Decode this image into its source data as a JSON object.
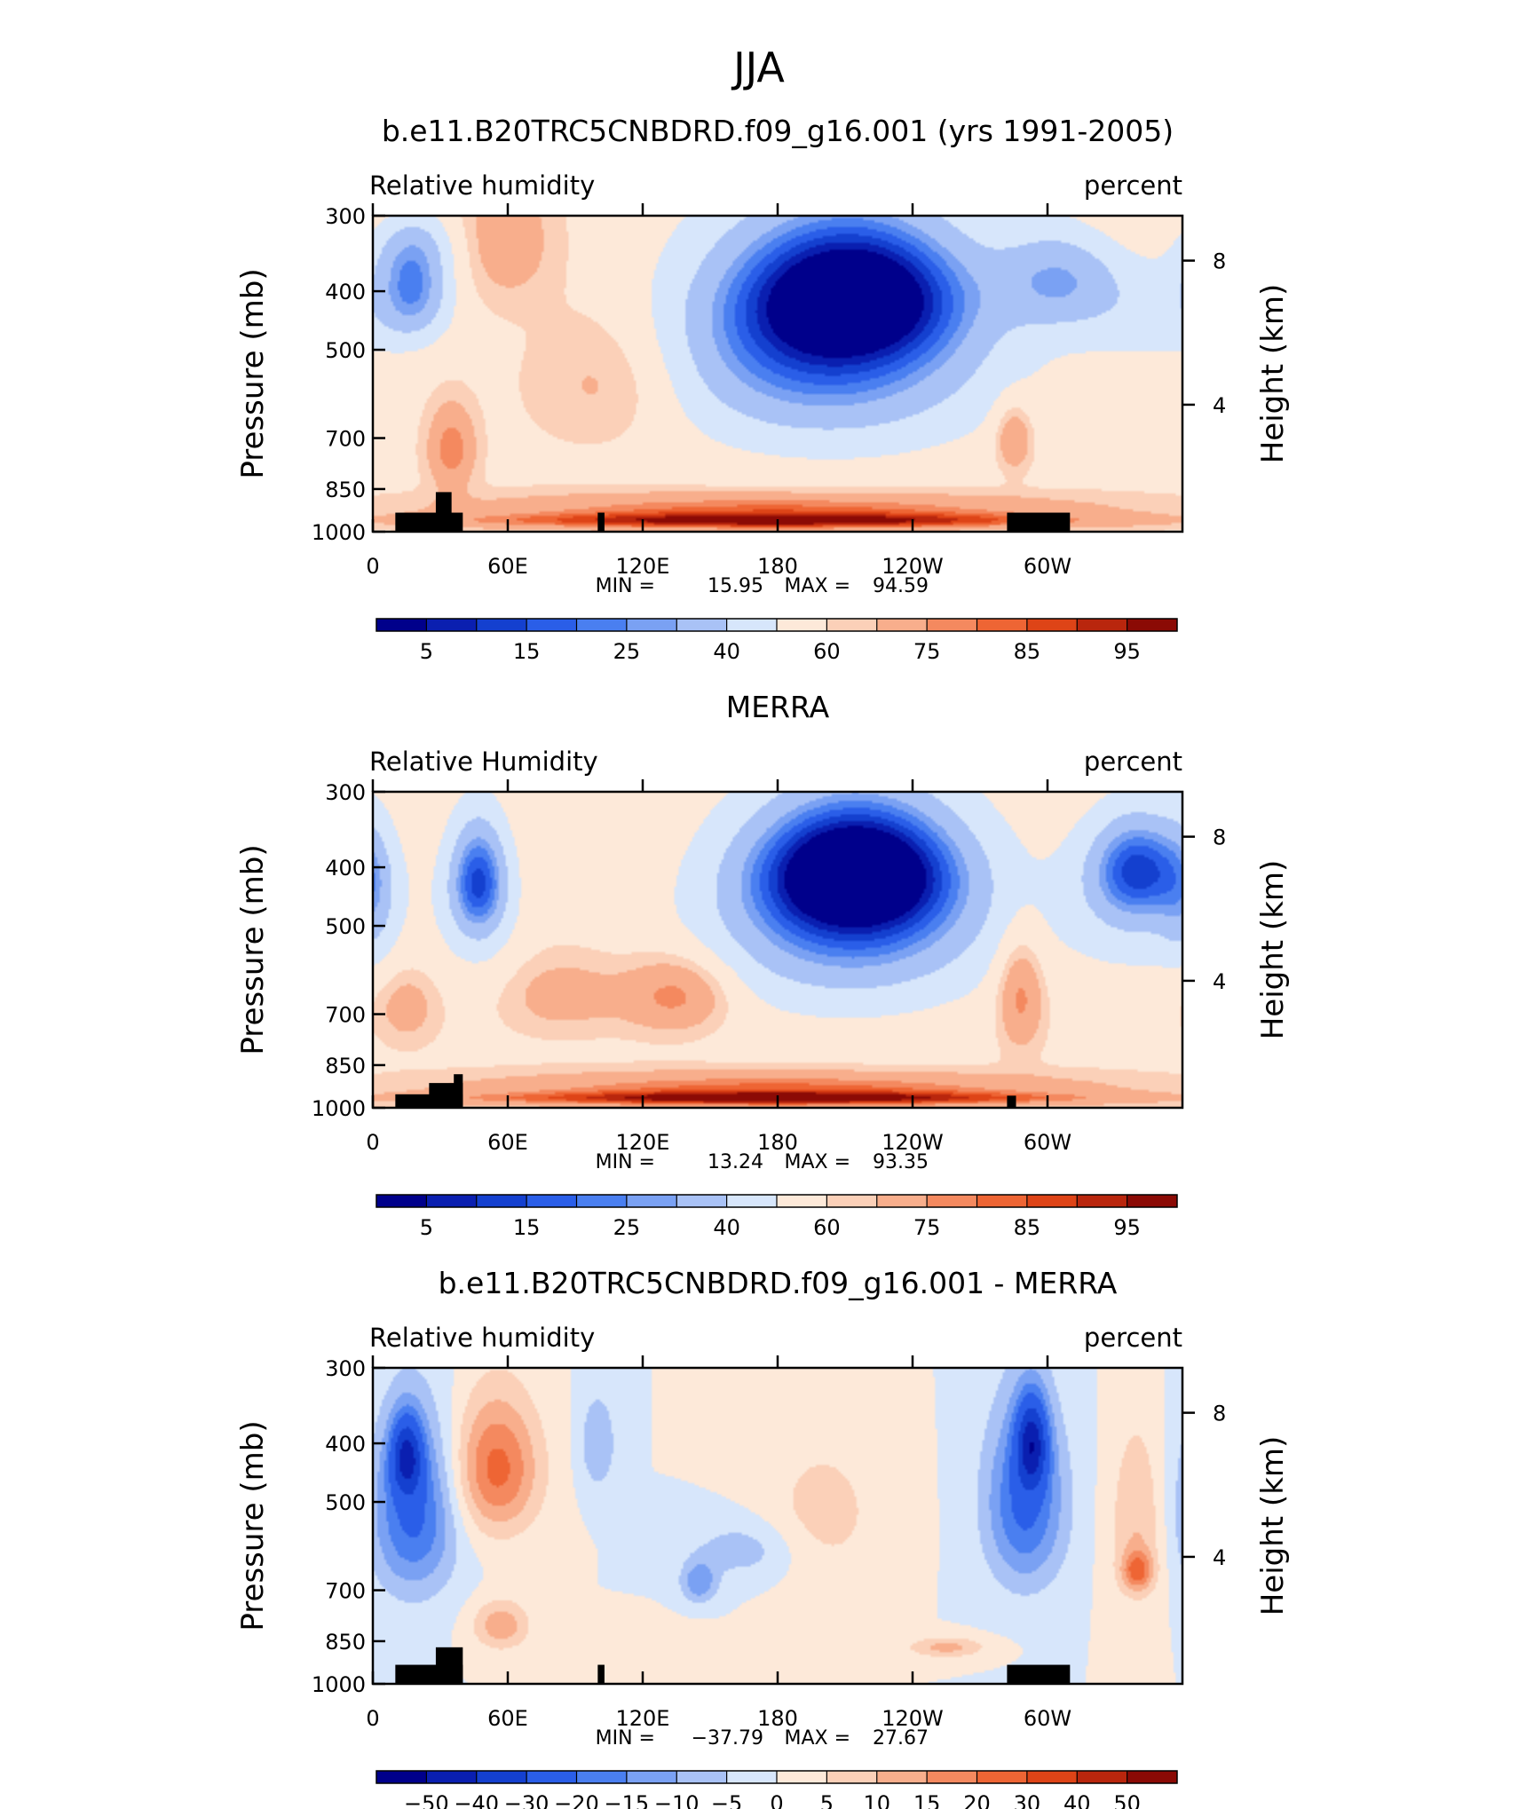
{
  "figure_title": "JJA",
  "chart_data": [
    {
      "type": "heatmap",
      "title": "b.e11.B20TRC5CNBDRD.f09_g16.001 (yrs 1991-2005)",
      "left_label": "Relative humidity",
      "right_label": "percent",
      "ylabel": "Pressure (mb)",
      "y2label": "Height (km)",
      "xlabel": "",
      "y_ticks": [
        "300",
        "400",
        "500",
        "700",
        "850",
        "1000"
      ],
      "y_tick_values": [
        300,
        400,
        500,
        700,
        850,
        1000
      ],
      "y2_ticks": [
        "8",
        "4"
      ],
      "y2_tick_values": [
        8,
        4
      ],
      "x_ticks": [
        "0",
        "60E",
        "120E",
        "180",
        "120W",
        "60W"
      ],
      "x_tick_values": [
        0,
        60,
        120,
        180,
        240,
        300
      ],
      "xlim": [
        0,
        360
      ],
      "ylim": [
        1000,
        300
      ],
      "stats": {
        "min_label": "MIN =",
        "min": "15.95",
        "max_label": "MAX =",
        "max": "94.59"
      },
      "colorbar": {
        "labels": [
          "5",
          "15",
          "25",
          "40",
          "60",
          "75",
          "85",
          "95"
        ],
        "colors": [
          "#00008b",
          "#0a1fb0",
          "#1440cf",
          "#2a5ee8",
          "#4a7ff0",
          "#7aa1f3",
          "#a9c2f6",
          "#d7e6fb",
          "#fde9d9",
          "#fbd0b8",
          "#f8ae8c",
          "#f4895f",
          "#ee6534",
          "#de4417",
          "#b9260d",
          "#8b0a05"
        ]
      },
      "blobs": [
        {
          "x": 0,
          "p": 300,
          "rx": 90,
          "rp": 260,
          "v": 62
        },
        {
          "x": 360,
          "p": 300,
          "rx": 60,
          "rp": 260,
          "v": 62
        },
        {
          "x": 18,
          "p": 400,
          "rx": 24,
          "rp": 110,
          "v": 30
        },
        {
          "x": 18,
          "p": 330,
          "rx": 30,
          "rp": 80,
          "v": 42
        },
        {
          "x": 350,
          "p": 420,
          "rx": 60,
          "rp": 160,
          "v": 42
        },
        {
          "x": 305,
          "p": 380,
          "rx": 40,
          "rp": 110,
          "v": 35
        },
        {
          "x": 215,
          "p": 400,
          "rx": 70,
          "rp": 150,
          "v": 15
        },
        {
          "x": 200,
          "p": 470,
          "rx": 95,
          "rp": 260,
          "v": 30
        },
        {
          "x": 205,
          "p": 540,
          "rx": 120,
          "rp": 330,
          "v": 42
        },
        {
          "x": 60,
          "p": 330,
          "rx": 30,
          "rp": 120,
          "v": 70
        },
        {
          "x": 105,
          "p": 560,
          "rx": 50,
          "rp": 220,
          "v": 70
        },
        {
          "x": 35,
          "p": 730,
          "rx": 15,
          "rp": 170,
          "v": 80
        },
        {
          "x": 285,
          "p": 700,
          "rx": 12,
          "rp": 130,
          "v": 78
        },
        {
          "x": 180,
          "p": 920,
          "rx": 200,
          "rp": 90,
          "v": 82
        },
        {
          "x": 180,
          "p": 960,
          "rx": 200,
          "rp": 40,
          "v": 88
        }
      ],
      "terrain": [
        {
          "lon_start": 10,
          "lon_end": 40,
          "p_top": 930
        },
        {
          "lon_start": 28,
          "lon_end": 35,
          "p_top": 860
        },
        {
          "lon_start": 100,
          "lon_end": 103,
          "p_top": 930
        },
        {
          "lon_start": 282,
          "lon_end": 310,
          "p_top": 930
        }
      ]
    },
    {
      "type": "heatmap",
      "title": "MERRA",
      "left_label": "Relative Humidity",
      "right_label": "percent",
      "ylabel": "Pressure (mb)",
      "y2label": "Height (km)",
      "xlabel": "",
      "y_ticks": [
        "300",
        "400",
        "500",
        "700",
        "850",
        "1000"
      ],
      "y_tick_values": [
        300,
        400,
        500,
        700,
        850,
        1000
      ],
      "y2_ticks": [
        "8",
        "4"
      ],
      "y2_tick_values": [
        8,
        4
      ],
      "x_ticks": [
        "0",
        "60E",
        "120E",
        "180",
        "120W",
        "60W"
      ],
      "x_tick_values": [
        0,
        60,
        120,
        180,
        240,
        300
      ],
      "xlim": [
        0,
        360
      ],
      "ylim": [
        1000,
        300
      ],
      "stats": {
        "min_label": "MIN =",
        "min": "13.24",
        "max_label": "MAX =",
        "max": "93.35"
      },
      "colorbar": {
        "labels": [
          "5",
          "15",
          "25",
          "40",
          "60",
          "75",
          "85",
          "95"
        ],
        "colors": [
          "#00008b",
          "#0a1fb0",
          "#1440cf",
          "#2a5ee8",
          "#4a7ff0",
          "#7aa1f3",
          "#a9c2f6",
          "#d7e6fb",
          "#fde9d9",
          "#fbd0b8",
          "#f8ae8c",
          "#f4895f",
          "#ee6534",
          "#de4417",
          "#b9260d",
          "#8b0a05"
        ]
      },
      "blobs": [
        {
          "x": 0,
          "p": 450,
          "rx": 15,
          "rp": 180,
          "v": 45
        },
        {
          "x": 47,
          "p": 420,
          "rx": 18,
          "rp": 130,
          "v": 25
        },
        {
          "x": 47,
          "p": 460,
          "rx": 28,
          "rp": 220,
          "v": 45
        },
        {
          "x": 215,
          "p": 400,
          "rx": 60,
          "rp": 130,
          "v": 15
        },
        {
          "x": 215,
          "p": 450,
          "rx": 80,
          "rp": 220,
          "v": 28
        },
        {
          "x": 210,
          "p": 520,
          "rx": 105,
          "rp": 300,
          "v": 42
        },
        {
          "x": 340,
          "p": 400,
          "rx": 30,
          "rp": 110,
          "v": 25
        },
        {
          "x": 340,
          "p": 460,
          "rx": 50,
          "rp": 200,
          "v": 42
        },
        {
          "x": 15,
          "p": 680,
          "rx": 20,
          "rp": 140,
          "v": 70
        },
        {
          "x": 135,
          "p": 650,
          "rx": 35,
          "rp": 140,
          "v": 80
        },
        {
          "x": 85,
          "p": 650,
          "rx": 40,
          "rp": 140,
          "v": 70
        },
        {
          "x": 288,
          "p": 650,
          "rx": 15,
          "rp": 200,
          "v": 80
        },
        {
          "x": 180,
          "p": 930,
          "rx": 200,
          "rp": 90,
          "v": 82
        },
        {
          "x": 180,
          "p": 965,
          "rx": 200,
          "rp": 35,
          "v": 88
        }
      ],
      "terrain": [
        {
          "lon_start": 10,
          "lon_end": 40,
          "p_top": 950
        },
        {
          "lon_start": 25,
          "lon_end": 40,
          "p_top": 910
        },
        {
          "lon_start": 36,
          "lon_end": 40,
          "p_top": 880
        },
        {
          "lon_start": 282,
          "lon_end": 286,
          "p_top": 955
        }
      ]
    },
    {
      "type": "heatmap",
      "title": "b.e11.B20TRC5CNBDRD.f09_g16.001 - MERRA",
      "left_label": "Relative humidity",
      "right_label": "percent",
      "ylabel": "Pressure (mb)",
      "y2label": "Height (km)",
      "xlabel": "",
      "y_ticks": [
        "300",
        "400",
        "500",
        "700",
        "850",
        "1000"
      ],
      "y_tick_values": [
        300,
        400,
        500,
        700,
        850,
        1000
      ],
      "y2_ticks": [
        "8",
        "4"
      ],
      "y2_tick_values": [
        8,
        4
      ],
      "x_ticks": [
        "0",
        "60E",
        "120E",
        "180",
        "120W",
        "60W"
      ],
      "x_tick_values": [
        0,
        60,
        120,
        180,
        240,
        300
      ],
      "xlim": [
        0,
        360
      ],
      "ylim": [
        1000,
        300
      ],
      "stats": {
        "min_label": "MIN =",
        "min": "−37.79",
        "max_label": "MAX =",
        "max": "27.67"
      },
      "colorbar": {
        "labels": [
          "−50",
          "−40",
          "−30",
          "−20",
          "−15",
          "−10",
          "−5",
          "0",
          "5",
          "10",
          "15",
          "20",
          "30",
          "40",
          "50"
        ],
        "colors": [
          "#00008b",
          "#0a1fb0",
          "#1440cf",
          "#2a5ee8",
          "#4a7ff0",
          "#7aa1f3",
          "#a9c2f6",
          "#d7e6fb",
          "#fde9d9",
          "#fbd0b8",
          "#f8ae8c",
          "#f4895f",
          "#ee6534",
          "#de4417",
          "#b9260d",
          "#8b0a05"
        ]
      },
      "blobs": [
        {
          "x": 18,
          "p": 520,
          "rx": 28,
          "rp": 260,
          "v": -22
        },
        {
          "x": 15,
          "p": 420,
          "rx": 10,
          "rp": 90,
          "v": -32
        },
        {
          "x": 55,
          "p": 440,
          "rx": 28,
          "rp": 170,
          "v": 22
        },
        {
          "x": 57,
          "p": 800,
          "rx": 18,
          "rp": 110,
          "v": 14
        },
        {
          "x": 290,
          "p": 500,
          "rx": 26,
          "rp": 260,
          "v": -22
        },
        {
          "x": 293,
          "p": 400,
          "rx": 10,
          "rp": 100,
          "v": -35
        },
        {
          "x": 165,
          "p": 600,
          "rx": 35,
          "rp": 100,
          "v": -8
        },
        {
          "x": 145,
          "p": 680,
          "rx": 12,
          "rp": 80,
          "v": -14
        },
        {
          "x": 100,
          "p": 400,
          "rx": 12,
          "rp": 110,
          "v": -10
        },
        {
          "x": 200,
          "p": 520,
          "rx": 40,
          "rp": 220,
          "v": 7
        },
        {
          "x": 340,
          "p": 540,
          "rx": 18,
          "rp": 280,
          "v": 10
        },
        {
          "x": 340,
          "p": 650,
          "rx": 10,
          "rp": 70,
          "v": 18
        },
        {
          "x": 255,
          "p": 870,
          "rx": 25,
          "rp": 50,
          "v": 12
        },
        {
          "x": 120,
          "p": 850,
          "rx": 40,
          "rp": 80,
          "v": 5
        }
      ],
      "terrain": [
        {
          "lon_start": 10,
          "lon_end": 40,
          "p_top": 930
        },
        {
          "lon_start": 28,
          "lon_end": 40,
          "p_top": 870
        },
        {
          "lon_start": 100,
          "lon_end": 103,
          "p_top": 930
        },
        {
          "lon_start": 282,
          "lon_end": 310,
          "p_top": 930
        }
      ]
    }
  ]
}
